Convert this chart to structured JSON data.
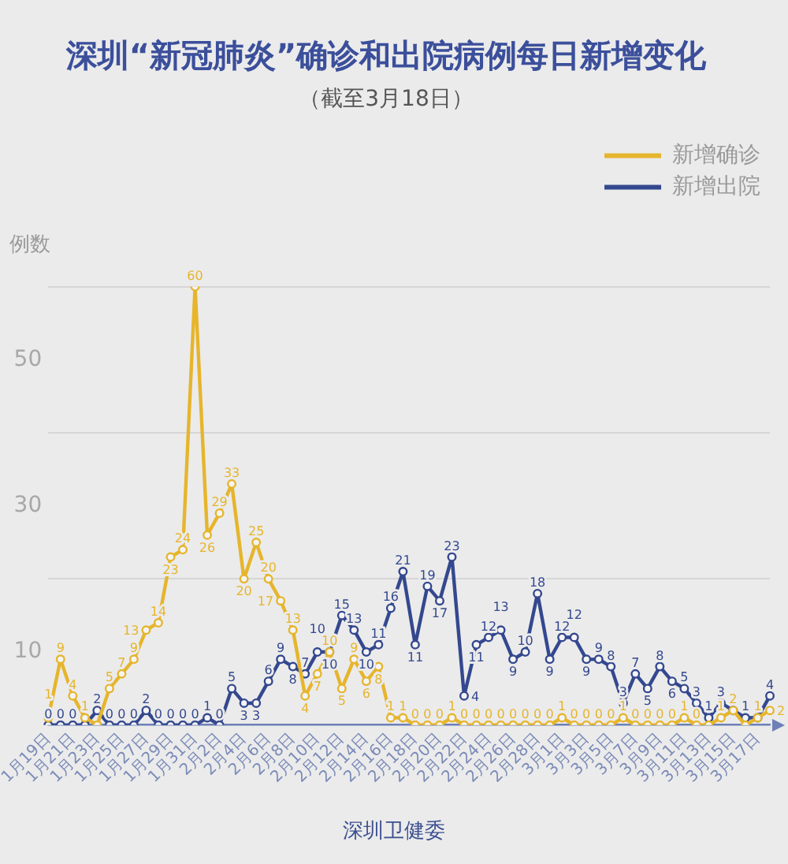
{
  "chart_data": {
    "type": "line",
    "title": "深圳“新冠肺炎”确诊和出院病例每日新增变化",
    "subtitle": "（截至3月18日）",
    "ylabel": "例数",
    "annotations": [
      "深圳卫健委"
    ],
    "categories": [
      "1月19日",
      null,
      "1月21日",
      null,
      "1月23日",
      null,
      "1月25日",
      null,
      "1月27日",
      null,
      "1月29日",
      null,
      "1月31日",
      null,
      "2月2日",
      null,
      "2月4日",
      null,
      "2月6日",
      null,
      "2月8日",
      null,
      "2月10日",
      null,
      "2月12日",
      null,
      "2月14日",
      null,
      "2月16日",
      null,
      "2月18日",
      null,
      "2月20日",
      null,
      "2月22日",
      null,
      "2月24日",
      null,
      "2月26日",
      null,
      "2月28日",
      null,
      "3月1日",
      null,
      "3月3日",
      null,
      "3月5日",
      null,
      "3月7日",
      null,
      "3月9日",
      null,
      "3月11日",
      null,
      "3月13日",
      null,
      "3月15日",
      null,
      "3月17日",
      null
    ],
    "series": [
      {
        "name": "新增确诊",
        "color": "#e6b52c",
        "values": [
          1,
          9,
          4,
          1,
          0,
          5,
          7,
          9,
          13,
          14,
          23,
          24,
          60,
          26,
          29,
          33,
          20,
          25,
          20,
          17,
          13,
          4,
          7,
          10,
          5,
          9,
          6,
          8,
          1,
          1,
          0,
          0,
          0,
          1,
          0,
          0,
          0,
          0,
          0,
          0,
          0,
          0,
          1,
          0,
          0,
          0,
          0,
          1,
          0,
          0,
          0,
          0,
          1,
          0,
          0,
          1,
          2,
          0,
          1,
          2
        ],
        "value_labels": [
          "1",
          "9",
          "4",
          "1",
          null,
          "5",
          "7",
          "9",
          "13",
          "14",
          "23",
          "24",
          "60",
          "26",
          "29",
          "33",
          "20",
          "25",
          "20",
          "17",
          "13",
          "4",
          "7",
          "10",
          "5",
          "9",
          "6",
          "8",
          "1",
          "1",
          "0",
          "0",
          "0",
          "1",
          "0",
          "0",
          "0",
          "0",
          "0",
          "0",
          "0",
          "0",
          "1",
          "0",
          "0",
          "0",
          "0",
          "1",
          "0",
          "0",
          "0",
          "0",
          "1",
          "0",
          null,
          "1",
          "2",
          null,
          "1",
          "2"
        ]
      },
      {
        "name": "新增出院",
        "color": "#34488f",
        "values": [
          0,
          0,
          0,
          0,
          2,
          0,
          0,
          0,
          2,
          0,
          0,
          0,
          0,
          1,
          0,
          5,
          3,
          3,
          6,
          9,
          8,
          7,
          10,
          10,
          15,
          13,
          10,
          11,
          16,
          21,
          11,
          19,
          17,
          23,
          4,
          11,
          12,
          13,
          9,
          10,
          18,
          9,
          12,
          12,
          9,
          9,
          8,
          3,
          7,
          5,
          8,
          6,
          5,
          3,
          1,
          3,
          2,
          1,
          1,
          4
        ],
        "value_labels": [
          "0",
          "0",
          "0",
          null,
          "2",
          "0",
          "0",
          "0",
          "2",
          "0",
          "0",
          "0",
          "0",
          "1",
          "0",
          "5",
          "3",
          "3",
          "6",
          "9",
          "8",
          "7",
          "10",
          "10",
          "15",
          "13",
          "10",
          "11",
          "16",
          "21",
          "11",
          "19",
          "17",
          "23",
          "4",
          "11",
          "12",
          "13",
          "9",
          "10",
          "18",
          "9",
          "12",
          "12",
          "9",
          "9",
          "8",
          "3",
          "7",
          "5",
          "8",
          "6",
          "5",
          "3",
          "1",
          "3",
          null,
          "1",
          null,
          "4"
        ]
      }
    ],
    "ylim": [
      0,
      60
    ],
    "yticks": [
      10,
      {
        "value": 20,
        "label": null
      },
      30,
      {
        "value": 40,
        "label": null
      },
      50,
      {
        "value": 60,
        "label": null
      }
    ],
    "grid": "y",
    "legend": "top right",
    "marker": "circle"
  }
}
